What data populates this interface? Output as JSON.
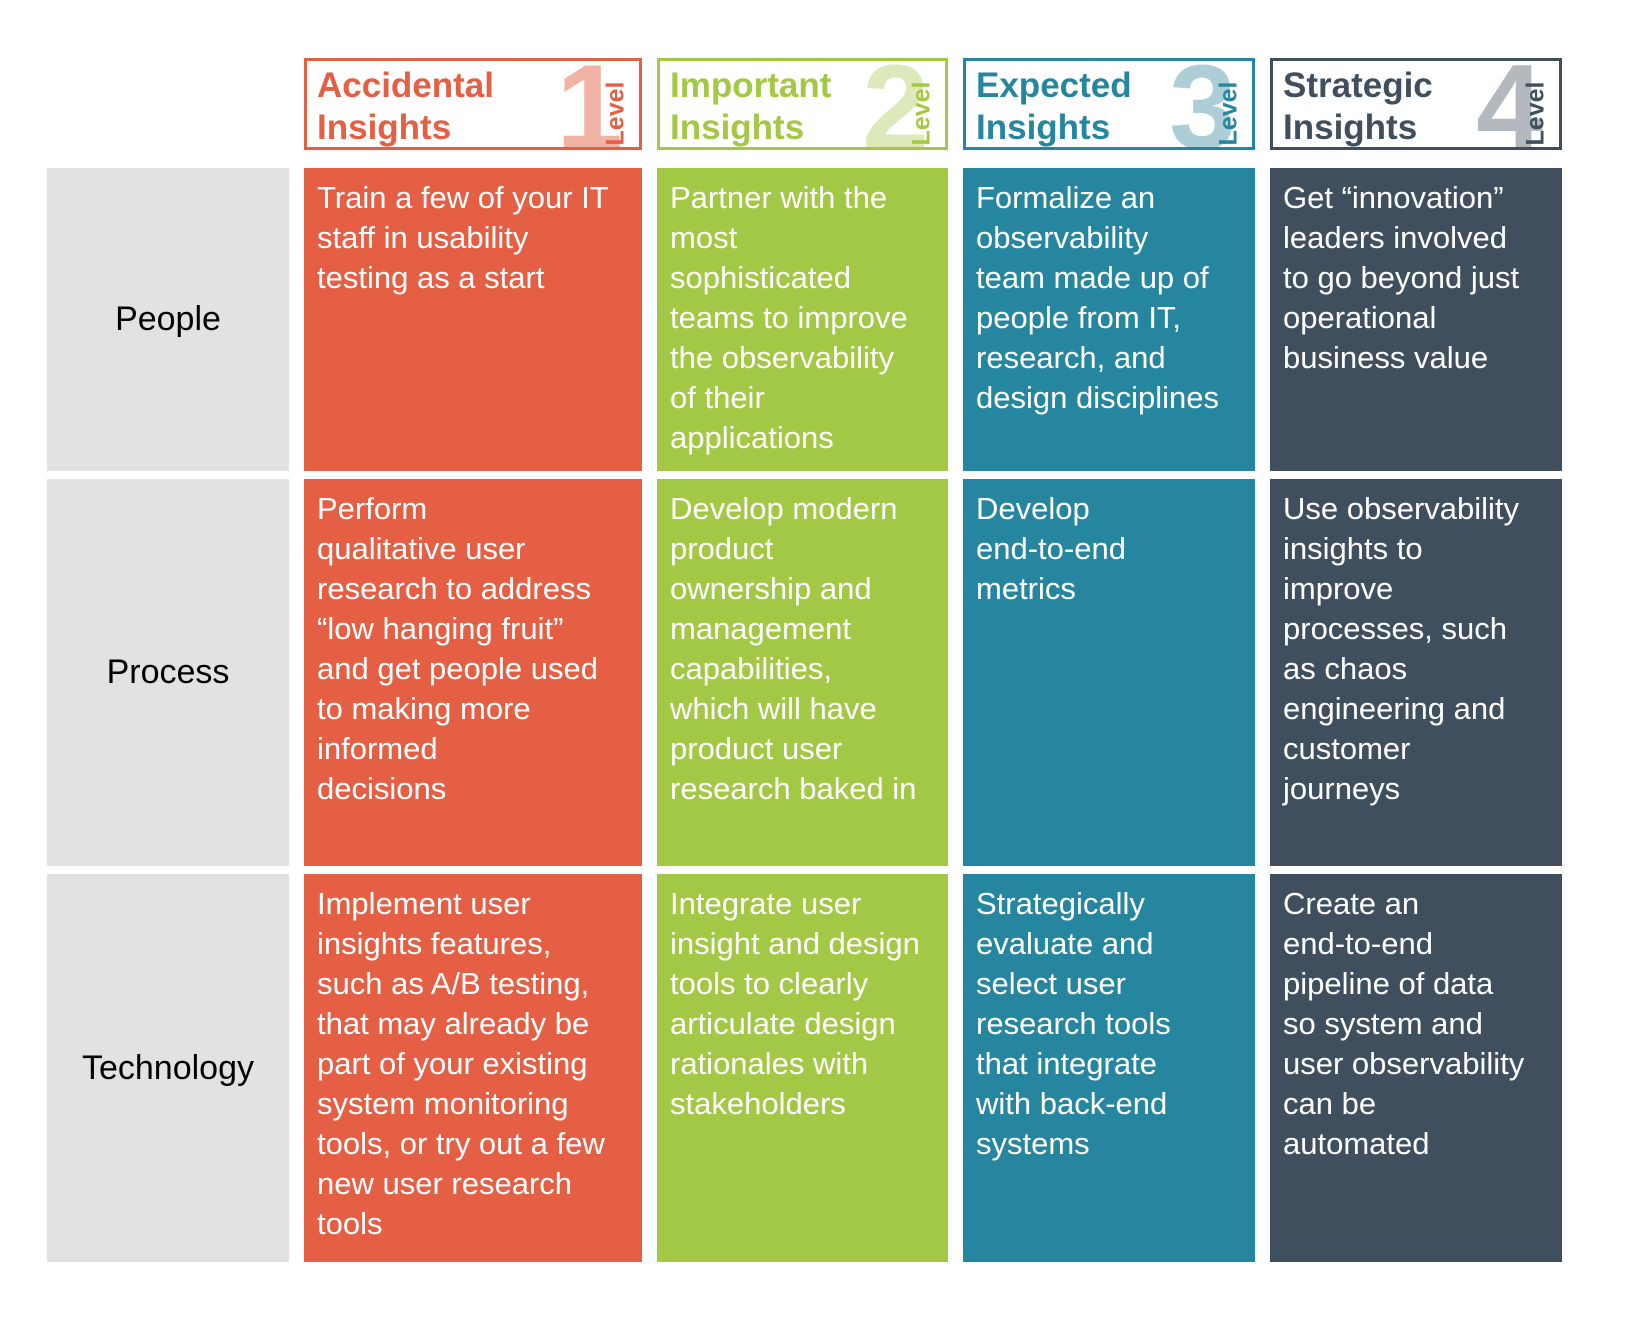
{
  "levels": [
    {
      "title": "Accidental\nInsights",
      "number": "1",
      "level_word": "Level",
      "color": "#e45f43",
      "number_color": "#f1b3a3"
    },
    {
      "title": "Important\nInsights",
      "number": "2",
      "level_word": "Level",
      "color": "#a3c845",
      "number_color": "#dde9bb"
    },
    {
      "title": "Expected\nInsights",
      "number": "3",
      "level_word": "Level",
      "color": "#26869f",
      "number_color": "#aeced7"
    },
    {
      "title": "Strategic\nInsights",
      "number": "4",
      "level_word": "Level",
      "color": "#3f4f5d",
      "number_color": "#b3b9be"
    }
  ],
  "rows": [
    {
      "label": "People",
      "cells": [
        "Train a few of your IT\nstaff in usability\ntesting as a start",
        "Partner with the\nmost\nsophisticated\nteams to improve\nthe observability\nof their\napplications",
        "Formalize an\nobservability\nteam made up of\npeople from IT,\nresearch, and\ndesign disciplines",
        "Get “innovation”\nleaders involved\nto go beyond just\noperational\nbusiness value"
      ]
    },
    {
      "label": "Process",
      "cells": [
        "Perform\nqualitative user\nresearch to address\n“low hanging fruit”\nand get people used\nto making more\ninformed\ndecisions",
        "Develop modern\nproduct\nownership and\nmanagement\ncapabilities,\nwhich will have\nproduct user\nresearch baked in",
        "Develop\nend-to-end\nmetrics",
        "Use observability\ninsights to\nimprove\nprocesses, such\nas chaos\nengineering and\ncustomer\njourneys"
      ]
    },
    {
      "label": "Technology",
      "cells": [
        "Implement user\ninsights features,\nsuch as A/B testing,\nthat may already be\npart of your existing\nsystem monitoring\ntools, or try out a few\nnew user research\ntools",
        "Integrate user\ninsight and design\ntools to clearly\narticulate design\nrationales with\nstakeholders",
        "Strategically\nevaluate and\nselect user\nresearch tools\nthat integrate\nwith back-end\nsystems",
        "Create an\nend-to-end\npipeline of data\nso system and\nuser observability\ncan be\nautomated"
      ]
    }
  ]
}
